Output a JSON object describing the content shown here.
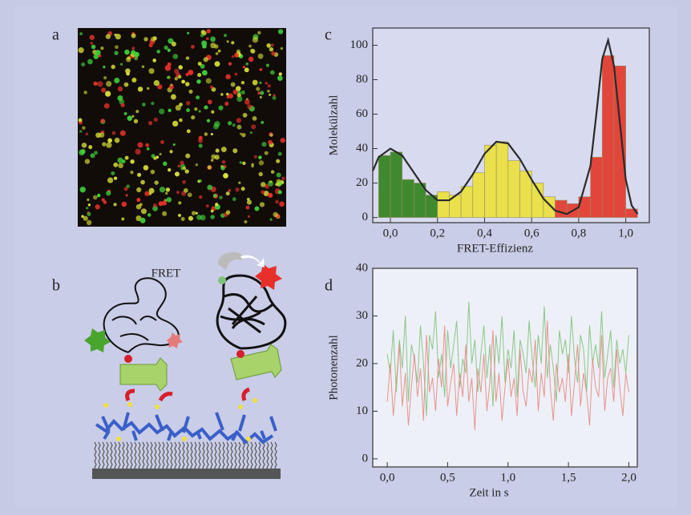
{
  "panel_labels": [
    "a",
    "b",
    "c",
    "d"
  ],
  "diagram": {
    "label": "FRET"
  },
  "chart_data": [
    {
      "type": "histogram",
      "xlabel": "FRET-Effizienz",
      "ylabel": "Molekülzahl",
      "bins": [
        -0.05,
        0,
        0.05,
        0.1,
        0.15,
        0.2,
        0.25,
        0.3,
        0.35,
        0.4,
        0.45,
        0.5,
        0.55,
        0.6,
        0.65,
        0.7,
        0.75,
        0.8,
        0.85,
        0.9,
        0.95,
        1.0,
        1.05
      ],
      "values": [
        36,
        38,
        22,
        20,
        13,
        15,
        13,
        18,
        26,
        42,
        44,
        33,
        27,
        20,
        12,
        10,
        8,
        12,
        35,
        94,
        88,
        5
      ],
      "colors": [
        "#3f8a2f",
        "#3f8a2f",
        "#3f8a2f",
        "#3f8a2f",
        "#3f8a2f",
        "#e9e04b",
        "#e9e04b",
        "#e9e04b",
        "#e9e04b",
        "#e9e04b",
        "#e9e04b",
        "#e9e04b",
        "#e9e04b",
        "#e9e04b",
        "#e9e04b",
        "#e2463b",
        "#e2463b",
        "#e2463b",
        "#e2463b",
        "#e2463b",
        "#e2463b",
        "#e2463b"
      ],
      "fit": {
        "color": "#2a2a2a",
        "x": [
          -0.075,
          -0.05,
          0,
          0.05,
          0.1,
          0.15,
          0.2,
          0.25,
          0.3,
          0.35,
          0.4,
          0.45,
          0.5,
          0.55,
          0.6,
          0.65,
          0.7,
          0.75,
          0.8,
          0.85,
          0.875,
          0.9,
          0.925,
          0.95,
          0.975,
          1.0,
          1.025,
          1.05
        ],
        "y": [
          27,
          35,
          40,
          36,
          26,
          16,
          10,
          10,
          15,
          25,
          37,
          44,
          43,
          34,
          22,
          11,
          4,
          2,
          6,
          30,
          60,
          92,
          103,
          88,
          55,
          22,
          7,
          2
        ]
      },
      "xlim": [
        -0.075,
        1.1
      ],
      "ylim": [
        -3,
        110
      ],
      "xticks": [
        {
          "value": 0,
          "label": "0,0"
        },
        {
          "value": 0.2,
          "label": "0,2"
        },
        {
          "value": 0.4,
          "label": "0,4"
        },
        {
          "value": 0.6,
          "label": "0,6"
        },
        {
          "value": 0.8,
          "label": "0,8"
        },
        {
          "value": 1.0,
          "label": "1,0"
        }
      ],
      "yticks": [
        0,
        20,
        40,
        60,
        80,
        100
      ]
    },
    {
      "type": "line",
      "xlabel": "Zeit in s",
      "ylabel": "Photonenzahl",
      "x": [
        0,
        0.025,
        0.05,
        0.075,
        0.1,
        0.125,
        0.15,
        0.175,
        0.2,
        0.225,
        0.25,
        0.275,
        0.3,
        0.325,
        0.35,
        0.375,
        0.4,
        0.425,
        0.45,
        0.475,
        0.5,
        0.525,
        0.55,
        0.575,
        0.6,
        0.625,
        0.65,
        0.675,
        0.7,
        0.725,
        0.75,
        0.775,
        0.8,
        0.825,
        0.85,
        0.875,
        0.9,
        0.925,
        0.95,
        0.975,
        1.0,
        1.025,
        1.05,
        1.075,
        1.1,
        1.125,
        1.15,
        1.175,
        1.2,
        1.225,
        1.25,
        1.275,
        1.3,
        1.325,
        1.35,
        1.375,
        1.4,
        1.425,
        1.45,
        1.475,
        1.5,
        1.525,
        1.55,
        1.575,
        1.6,
        1.625,
        1.65,
        1.675,
        1.7,
        1.725,
        1.75,
        1.775,
        1.8,
        1.825,
        1.85,
        1.875,
        1.9,
        1.925,
        1.95,
        1.975,
        2.0
      ],
      "series": [
        {
          "color": "#7fc27a",
          "values": [
            22,
            18,
            27,
            14,
            25,
            19,
            30,
            12,
            24,
            21,
            16,
            28,
            20,
            9,
            26,
            23,
            31,
            17,
            22,
            13,
            27,
            19,
            24,
            29,
            15,
            21,
            18,
            33,
            20,
            25,
            14,
            22,
            28,
            17,
            24,
            11,
            26,
            20,
            30,
            16,
            23,
            19,
            27,
            13,
            25,
            22,
            18,
            29,
            21,
            15,
            26,
            20,
            32,
            17,
            24,
            19,
            12,
            27,
            22,
            25,
            18,
            30,
            21,
            16,
            26,
            23,
            14,
            28,
            20,
            24,
            19,
            31,
            17,
            22,
            27,
            15,
            25,
            20,
            23,
            18,
            26
          ]
        },
        {
          "color": "#e48a80",
          "values": [
            12,
            20,
            9,
            16,
            24,
            11,
            18,
            7,
            15,
            22,
            13,
            19,
            8,
            26,
            14,
            17,
            10,
            21,
            15,
            28,
            11,
            16,
            20,
            9,
            18,
            13,
            24,
            12,
            17,
            6,
            19,
            14,
            22,
            10,
            16,
            27,
            12,
            18,
            8,
            15,
            21,
            13,
            17,
            9,
            23,
            14,
            11,
            19,
            16,
            25,
            10,
            18,
            13,
            29,
            15,
            8,
            20,
            14,
            17,
            12,
            22,
            9,
            16,
            24,
            11,
            18,
            14,
            7,
            21,
            15,
            13,
            26,
            10,
            17,
            19,
            12,
            23,
            15,
            9,
            18,
            14
          ]
        }
      ],
      "xlim": [
        -0.12,
        2.07
      ],
      "ylim": [
        -1.7,
        40
      ],
      "xticks": [
        {
          "value": 0,
          "label": "0,0"
        },
        {
          "value": 0.5,
          "label": "0,5"
        },
        {
          "value": 1.0,
          "label": "1,0"
        },
        {
          "value": 1.5,
          "label": "1,5"
        },
        {
          "value": 2.0,
          "label": "2,0"
        }
      ],
      "yticks": [
        0,
        10,
        20,
        30,
        40
      ]
    }
  ]
}
